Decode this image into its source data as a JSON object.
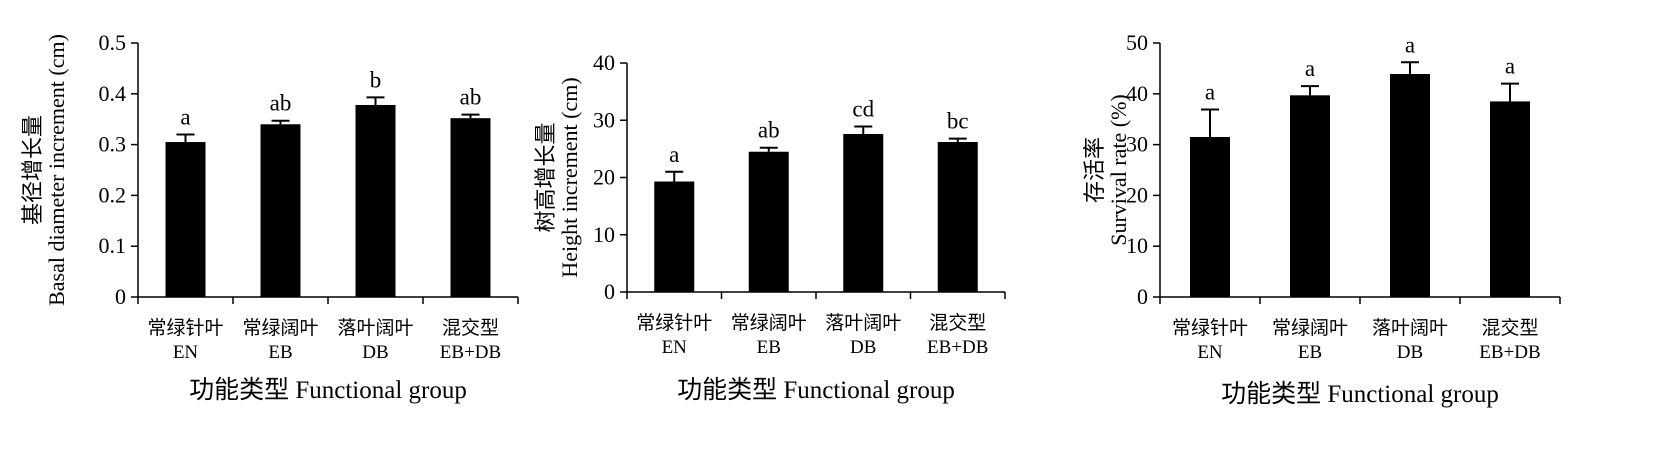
{
  "colors": {
    "bar": "#000000",
    "axis": "#000000",
    "background": "#ffffff"
  },
  "chart_data": [
    {
      "type": "bar",
      "categories": [
        "常绿针叶",
        "常绿阔叶",
        "落叶阔叶",
        "混交型"
      ],
      "category_codes": [
        "EN",
        "EB",
        "DB",
        "EB+DB"
      ],
      "values": [
        0.305,
        0.34,
        0.378,
        0.352
      ],
      "errors": [
        0.015,
        0.007,
        0.015,
        0.007
      ],
      "significance": [
        "a",
        "ab",
        "b",
        "ab"
      ],
      "ylabel_cn": "基径增长量",
      "ylabel_en": "Basal diameter increment (cm)",
      "xlabel": "功能类型 Functional group",
      "ylim": [
        0,
        0.5
      ],
      "yticks": [
        "0",
        "0.1",
        "0.2",
        "0.3",
        "0.4",
        "0.5"
      ],
      "grid": false
    },
    {
      "type": "bar",
      "categories": [
        "常绿针叶",
        "常绿阔叶",
        "落叶阔叶",
        "混交型"
      ],
      "category_codes": [
        "EN",
        "EB",
        "DB",
        "EB+DB"
      ],
      "values": [
        19.3,
        24.5,
        27.6,
        26.2
      ],
      "errors": [
        1.7,
        0.7,
        1.3,
        0.6
      ],
      "significance": [
        "a",
        "ab",
        "cd",
        "bc"
      ],
      "ylabel_cn": "树高增长量",
      "ylabel_en": "Height increment (cm)",
      "xlabel": "功能类型 Functional group",
      "ylim": [
        0,
        40
      ],
      "yticks": [
        "0",
        "10",
        "20",
        "30",
        "40"
      ],
      "grid": false
    },
    {
      "type": "bar",
      "categories": [
        "常绿针叶",
        "常绿阔叶",
        "落叶阔叶",
        "混交型"
      ],
      "category_codes": [
        "EN",
        "EB",
        "DB",
        "EB+DB"
      ],
      "values": [
        31.5,
        39.7,
        43.9,
        38.5
      ],
      "errors": [
        5.4,
        1.8,
        2.3,
        3.5
      ],
      "significance": [
        "a",
        "a",
        "a",
        "a"
      ],
      "ylabel_cn": "存活率",
      "ylabel_en": "Survival rate (%)",
      "xlabel": "功能类型 Functional group",
      "ylim": [
        0,
        50
      ],
      "yticks": [
        "0",
        "10",
        "20",
        "30",
        "40",
        "50"
      ],
      "grid": false
    }
  ]
}
